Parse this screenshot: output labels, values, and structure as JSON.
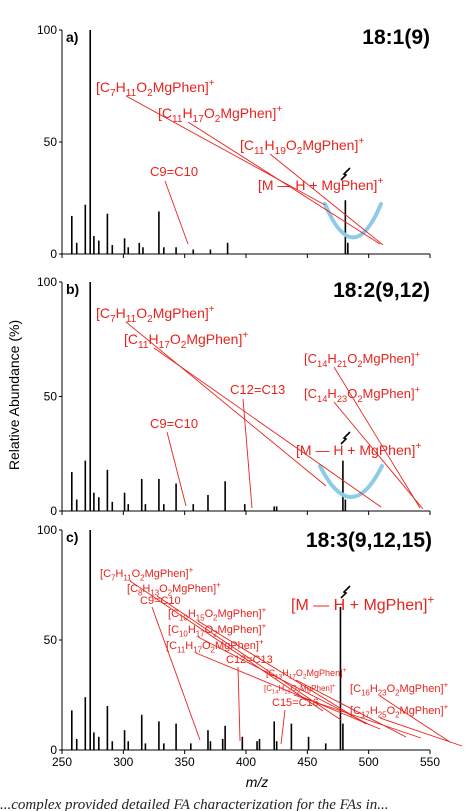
{
  "caption": "...complex provided detailed FA characterization for the FAs in...",
  "y_axis_label": "Relative Abundance (%)",
  "x_axis_label": "m/z",
  "x_ticks": [
    "250",
    "300",
    "350",
    "400",
    "450",
    "500",
    "550"
  ],
  "y_ticks": [
    "0",
    "50",
    "100"
  ],
  "colors": {
    "annotation": "#e8231d",
    "arc": "#8ccce8",
    "peaks": "#000000"
  },
  "chart_data": [
    {
      "type": "bar",
      "panel_label": "a)",
      "title": "18:1(9)",
      "xlabel": "m/z",
      "ylabel": "Relative Abundance (%)",
      "xlim": [
        250,
        550
      ],
      "ylim": [
        0,
        100
      ],
      "peaks": [
        {
          "x": 258,
          "y": 17
        },
        {
          "x": 262,
          "y": 5
        },
        {
          "x": 269,
          "y": 22
        },
        {
          "x": 273,
          "y": 100
        },
        {
          "x": 276,
          "y": 8
        },
        {
          "x": 280,
          "y": 6
        },
        {
          "x": 287,
          "y": 18
        },
        {
          "x": 291,
          "y": 4
        },
        {
          "x": 301,
          "y": 7
        },
        {
          "x": 304,
          "y": 3
        },
        {
          "x": 313,
          "y": 5
        },
        {
          "x": 316,
          "y": 3
        },
        {
          "x": 329,
          "y": 19
        },
        {
          "x": 333,
          "y": 3
        },
        {
          "x": 343,
          "y": 3
        },
        {
          "x": 357,
          "y": 2
        },
        {
          "x": 371,
          "y": 2
        },
        {
          "x": 385,
          "y": 5
        },
        {
          "x": 481,
          "y": 24
        },
        {
          "x": 483,
          "y": 5
        }
      ],
      "bond_label": "C9=C10",
      "annotations": [
        {
          "ion": [
            "C",
            {
              "sub": "7"
            },
            "H",
            {
              "sub": "11"
            },
            "O",
            {
              "sub": "2"
            },
            "MgPhen]",
            {
              "sup": "+"
            }
          ],
          "x": 329
        },
        {
          "ion": [
            "C",
            {
              "sub": "11"
            },
            "H",
            {
              "sub": "17"
            },
            "O",
            {
              "sub": "2"
            },
            "MgPhen]",
            {
              "sup": "+"
            }
          ],
          "x": 385
        },
        {
          "ion": [
            "C",
            {
              "sub": "11"
            },
            "H",
            {
              "sub": "19"
            },
            "O",
            {
              "sub": "2"
            },
            "MgPhen]",
            {
              "sup": "+"
            }
          ],
          "x": 386
        }
      ],
      "precursor": "[M — H + MgPhen]+"
    },
    {
      "type": "bar",
      "panel_label": "b)",
      "title": "18:2(9,12)",
      "xlabel": "m/z",
      "ylabel": "Relative Abundance (%)",
      "xlim": [
        250,
        550
      ],
      "ylim": [
        0,
        100
      ],
      "peaks": [
        {
          "x": 258,
          "y": 17
        },
        {
          "x": 262,
          "y": 5
        },
        {
          "x": 269,
          "y": 22
        },
        {
          "x": 273,
          "y": 100
        },
        {
          "x": 276,
          "y": 8
        },
        {
          "x": 280,
          "y": 6
        },
        {
          "x": 287,
          "y": 18
        },
        {
          "x": 291,
          "y": 4
        },
        {
          "x": 301,
          "y": 8
        },
        {
          "x": 304,
          "y": 3
        },
        {
          "x": 315,
          "y": 14
        },
        {
          "x": 318,
          "y": 3
        },
        {
          "x": 329,
          "y": 14
        },
        {
          "x": 333,
          "y": 3
        },
        {
          "x": 343,
          "y": 12
        },
        {
          "x": 357,
          "y": 3
        },
        {
          "x": 369,
          "y": 7
        },
        {
          "x": 383,
          "y": 13
        },
        {
          "x": 399,
          "y": 3
        },
        {
          "x": 423,
          "y": 2
        },
        {
          "x": 425,
          "y": 2
        },
        {
          "x": 479,
          "y": 22
        },
        {
          "x": 481,
          "y": 5
        }
      ],
      "bond_labels": [
        "C9=C10",
        "C12=C13"
      ],
      "annotations": [
        {
          "ion": [
            "C",
            {
              "sub": "7"
            },
            "H",
            {
              "sub": "11"
            },
            "O",
            {
              "sub": "2"
            },
            "MgPhen]",
            {
              "sup": "+"
            }
          ],
          "x": 329
        },
        {
          "ion": [
            "C",
            {
              "sub": "11"
            },
            "H",
            {
              "sub": "17"
            },
            "O",
            {
              "sub": "2"
            },
            "MgPhen]",
            {
              "sup": "+"
            }
          ],
          "x": 383
        },
        {
          "ion": [
            "C",
            {
              "sub": "14"
            },
            "H",
            {
              "sub": "21"
            },
            "O",
            {
              "sub": "2"
            },
            "MgPhen]",
            {
              "sup": "+"
            }
          ],
          "x": 423
        },
        {
          "ion": [
            "C",
            {
              "sub": "14"
            },
            "H",
            {
              "sub": "23"
            },
            "O",
            {
              "sub": "2"
            },
            "MgPhen]",
            {
              "sup": "+"
            }
          ],
          "x": 425
        }
      ],
      "precursor": "[M — H + MgPhen]+"
    },
    {
      "type": "bar",
      "panel_label": "c)",
      "title": "18:3(9,12,15)",
      "xlabel": "m/z",
      "ylabel": "Relative Abundance (%)",
      "xlim": [
        250,
        550
      ],
      "ylim": [
        0,
        100
      ],
      "peaks": [
        {
          "x": 258,
          "y": 18
        },
        {
          "x": 262,
          "y": 5
        },
        {
          "x": 269,
          "y": 24
        },
        {
          "x": 273,
          "y": 100
        },
        {
          "x": 276,
          "y": 8
        },
        {
          "x": 280,
          "y": 6
        },
        {
          "x": 287,
          "y": 20
        },
        {
          "x": 291,
          "y": 4
        },
        {
          "x": 301,
          "y": 9
        },
        {
          "x": 304,
          "y": 4
        },
        {
          "x": 315,
          "y": 16
        },
        {
          "x": 318,
          "y": 3
        },
        {
          "x": 329,
          "y": 13
        },
        {
          "x": 333,
          "y": 3
        },
        {
          "x": 343,
          "y": 12
        },
        {
          "x": 355,
          "y": 3
        },
        {
          "x": 369,
          "y": 9
        },
        {
          "x": 371,
          "y": 4
        },
        {
          "x": 381,
          "y": 5
        },
        {
          "x": 383,
          "y": 11
        },
        {
          "x": 397,
          "y": 6
        },
        {
          "x": 409,
          "y": 4
        },
        {
          "x": 411,
          "y": 5
        },
        {
          "x": 423,
          "y": 13
        },
        {
          "x": 425,
          "y": 4
        },
        {
          "x": 437,
          "y": 12
        },
        {
          "x": 451,
          "y": 6
        },
        {
          "x": 465,
          "y": 3
        },
        {
          "x": 477,
          "y": 65
        },
        {
          "x": 479,
          "y": 12
        }
      ],
      "bond_labels": [
        "C9=C10",
        "C12=C13",
        "C15=C16"
      ],
      "annotations": [
        {
          "ion": [
            "C",
            {
              "sub": "7"
            },
            "H",
            {
              "sub": "11"
            },
            "O",
            {
              "sub": "2"
            },
            "MgPhen]",
            {
              "sup": "+"
            }
          ],
          "x": 329
        },
        {
          "ion": [
            "C",
            {
              "sub": "8"
            },
            "H",
            {
              "sub": "13"
            },
            "O",
            {
              "sub": "2"
            },
            "MgPhen]",
            {
              "sup": "+"
            }
          ],
          "x": 343
        },
        {
          "ion": [
            "C",
            {
              "sub": "10"
            },
            "H",
            {
              "sub": "15"
            },
            "O",
            {
              "sub": "2"
            },
            "MgPhen]",
            {
              "sup": "+"
            }
          ],
          "x": 369
        },
        {
          "ion": [
            "C",
            {
              "sub": "10"
            },
            "H",
            {
              "sub": "17"
            },
            "O",
            {
              "sub": "2"
            },
            "MgPhen]",
            {
              "sup": "+"
            }
          ],
          "x": 371
        },
        {
          "ion": [
            "C",
            {
              "sub": "11"
            },
            "H",
            {
              "sub": "17"
            },
            "O",
            {
              "sub": "2"
            },
            "MgPhen]",
            {
              "sup": "+"
            }
          ],
          "x": 383
        },
        {
          "ion": [
            "C",
            {
              "sub": "13"
            },
            "H",
            {
              "sub": "17"
            },
            "O",
            {
              "sub": "2"
            },
            "MgPhen]",
            {
              "sup": "+"
            }
          ],
          "x": 409
        },
        {
          "ion": [
            "C",
            {
              "sub": "14"
            },
            "H",
            {
              "sub": "19"
            },
            "O",
            {
              "sub": "2"
            },
            "MgPhen]",
            {
              "sup": "+"
            }
          ],
          "x": 423
        },
        {
          "ion": [
            "C",
            {
              "sub": "16"
            },
            "H",
            {
              "sub": "23"
            },
            "O",
            {
              "sub": "2"
            },
            "MgPhen]",
            {
              "sup": "+"
            }
          ],
          "x": 451
        },
        {
          "ion": [
            "C",
            {
              "sub": "17"
            },
            "H",
            {
              "sub": "25"
            },
            "O",
            {
              "sub": "2"
            },
            "MgPhen]",
            {
              "sup": "+"
            }
          ],
          "x": 465
        }
      ],
      "precursor": "[M — H + MgPhen]+"
    }
  ]
}
